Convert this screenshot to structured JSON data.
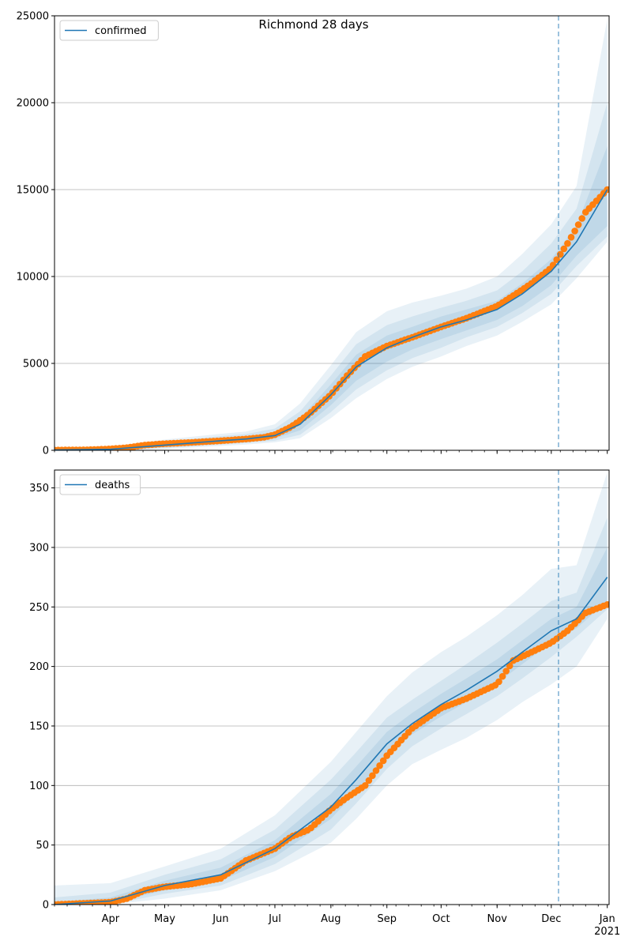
{
  "figure": {
    "title": "Richmond 28 days"
  },
  "chart_data": [
    {
      "type": "line",
      "panel": "top",
      "title": "Richmond 28 days",
      "xlabel": "",
      "ylabel": "",
      "x_axis_kind": "date",
      "xlim": [
        "2020-03-01",
        "2021-01-02"
      ],
      "ylim": [
        0,
        25000
      ],
      "yticks": [
        0,
        5000,
        10000,
        15000,
        20000,
        25000
      ],
      "ytick_labels": [
        "0",
        "5000",
        "10000",
        "15000",
        "20000",
        "25000"
      ],
      "grid": "horizontal",
      "legend": {
        "position": "top-left",
        "entries": [
          "confirmed"
        ]
      },
      "forecast_start": "2020-12-05",
      "colors": {
        "model": "#1f77b4",
        "observed": "#ff7f0e",
        "band": "#1f77b4",
        "vline": "#1f77b4"
      },
      "series": [
        {
          "name": "confirmed",
          "kind": "model",
          "x": [
            "2020-03-01",
            "2020-04-01",
            "2020-05-01",
            "2020-06-01",
            "2020-06-15",
            "2020-07-01",
            "2020-07-15",
            "2020-08-01",
            "2020-08-15",
            "2020-09-01",
            "2020-09-15",
            "2020-10-01",
            "2020-10-15",
            "2020-11-01",
            "2020-11-15",
            "2020-12-01",
            "2020-12-15",
            "2021-01-01"
          ],
          "values": [
            20,
            60,
            300,
            550,
            650,
            850,
            1500,
            3200,
            4800,
            5900,
            6500,
            7100,
            7500,
            8100,
            9000,
            10300,
            12000,
            15000
          ],
          "bands": [
            {
              "lo": [
                0,
                40,
                200,
                430,
                520,
                680,
                1150,
                2600,
                4000,
                5100,
                5800,
                6400,
                6900,
                7500,
                8300,
                9500,
                11200,
                12900
              ],
              "hi": [
                60,
                90,
                400,
                700,
                800,
                1050,
                1850,
                3800,
                5500,
                6600,
                7100,
                7700,
                8100,
                8600,
                9600,
                11000,
                12900,
                17500
              ]
            },
            {
              "lo": [
                0,
                20,
                130,
                330,
                420,
                560,
                900,
                2200,
                3500,
                4600,
                5300,
                5900,
                6500,
                7100,
                7900,
                9000,
                10600,
                12300
              ],
              "hi": [
                120,
                140,
                500,
                820,
                930,
                1250,
                2250,
                4300,
                6100,
                7200,
                7700,
                8200,
                8600,
                9200,
                10300,
                11900,
                13900,
                20000
              ]
            },
            {
              "lo": [
                0,
                0,
                80,
                250,
                330,
                460,
                700,
                1850,
                3000,
                4100,
                4800,
                5400,
                6000,
                6600,
                7400,
                8400,
                9900,
                12000
              ],
              "hi": [
                200,
                220,
                620,
                950,
                1080,
                1500,
                2700,
                4900,
                6800,
                8000,
                8500,
                8900,
                9300,
                10000,
                11300,
                13000,
                15200,
                24800
              ]
            }
          ]
        },
        {
          "name": "observed",
          "kind": "observed",
          "x": [
            "2020-03-01",
            "2020-03-20",
            "2020-04-01",
            "2020-04-10",
            "2020-04-20",
            "2020-05-01",
            "2020-05-15",
            "2020-06-01",
            "2020-06-15",
            "2020-06-25",
            "2020-07-01",
            "2020-07-10",
            "2020-07-20",
            "2020-08-01",
            "2020-08-10",
            "2020-08-20",
            "2020-09-01",
            "2020-09-15",
            "2020-10-01",
            "2020-10-15",
            "2020-11-01",
            "2020-11-10",
            "2020-11-20",
            "2020-12-01",
            "2020-12-10",
            "2020-12-20",
            "2021-01-01"
          ],
          "values": [
            10,
            30,
            80,
            150,
            300,
            380,
            450,
            550,
            650,
            750,
            900,
            1350,
            2100,
            3200,
            4300,
            5400,
            6000,
            6500,
            7100,
            7600,
            8300,
            8900,
            9600,
            10500,
            11900,
            13700,
            15000
          ]
        }
      ]
    },
    {
      "type": "line",
      "panel": "bottom",
      "title": "",
      "xlabel": "",
      "ylabel": "",
      "x_axis_kind": "date",
      "xlim": [
        "2020-03-01",
        "2021-01-02"
      ],
      "ylim": [
        0,
        365
      ],
      "yticks": [
        0,
        50,
        100,
        150,
        200,
        250,
        300,
        350
      ],
      "ytick_labels": [
        "0",
        "50",
        "100",
        "150",
        "200",
        "250",
        "300",
        "350"
      ],
      "xtick_labels": [
        {
          "date": "2020-04-01",
          "label": "Apr"
        },
        {
          "date": "2020-05-01",
          "label": "May"
        },
        {
          "date": "2020-06-01",
          "label": "Jun"
        },
        {
          "date": "2020-07-01",
          "label": "Jul"
        },
        {
          "date": "2020-08-01",
          "label": "Aug"
        },
        {
          "date": "2020-09-01",
          "label": "Sep"
        },
        {
          "date": "2020-10-01",
          "label": "Oct"
        },
        {
          "date": "2020-11-01",
          "label": "Nov"
        },
        {
          "date": "2020-12-01",
          "label": "Dec"
        },
        {
          "date": "2021-01-01",
          "label": "Jan",
          "sublabel": "2021"
        }
      ],
      "grid": "horizontal",
      "legend": {
        "position": "top-left",
        "entries": [
          "deaths"
        ]
      },
      "forecast_start": "2020-12-05",
      "colors": {
        "model": "#1f77b4",
        "observed": "#ff7f0e",
        "band": "#1f77b4",
        "vline": "#1f77b4"
      },
      "series": [
        {
          "name": "deaths",
          "kind": "model",
          "x": [
            "2020-03-01",
            "2020-04-01",
            "2020-05-01",
            "2020-06-01",
            "2020-07-01",
            "2020-08-01",
            "2020-08-15",
            "2020-09-01",
            "2020-09-15",
            "2020-10-01",
            "2020-10-15",
            "2020-11-01",
            "2020-11-15",
            "2020-12-01",
            "2020-12-15",
            "2021-01-01"
          ],
          "values": [
            0,
            3,
            16,
            25,
            47,
            82,
            105,
            135,
            152,
            168,
            180,
            196,
            212,
            230,
            240,
            275
          ],
          "bands": [
            {
              "lo": [
                0,
                1,
                12,
                20,
                40,
                72,
                95,
                125,
                143,
                158,
                170,
                186,
                202,
                220,
                232,
                255
              ],
              "hi": [
                2,
                6,
                20,
                31,
                54,
                93,
                116,
                145,
                161,
                177,
                190,
                206,
                222,
                240,
                250,
                300
              ]
            },
            {
              "lo": [
                0,
                0,
                9,
                16,
                34,
                63,
                85,
                114,
                133,
                148,
                160,
                175,
                190,
                208,
                225,
                248
              ],
              "hi": [
                6,
                10,
                25,
                38,
                63,
                105,
                128,
                157,
                172,
                188,
                202,
                220,
                236,
                255,
                262,
                325
              ]
            },
            {
              "lo": [
                0,
                0,
                5,
                12,
                28,
                52,
                72,
                100,
                118,
                130,
                140,
                155,
                170,
                185,
                200,
                240
              ],
              "hi": [
                16,
                18,
                32,
                47,
                75,
                120,
                145,
                175,
                195,
                212,
                225,
                243,
                260,
                282,
                285,
                363
              ]
            }
          ]
        },
        {
          "name": "observed",
          "kind": "observed",
          "x": [
            "2020-03-01",
            "2020-04-01",
            "2020-04-10",
            "2020-04-20",
            "2020-05-01",
            "2020-05-15",
            "2020-06-01",
            "2020-06-15",
            "2020-07-01",
            "2020-07-10",
            "2020-07-20",
            "2020-08-01",
            "2020-08-10",
            "2020-08-20",
            "2020-09-01",
            "2020-09-15",
            "2020-10-01",
            "2020-10-15",
            "2020-11-01",
            "2020-11-10",
            "2020-11-20",
            "2020-12-01",
            "2020-12-10",
            "2020-12-20",
            "2021-01-01"
          ],
          "values": [
            0,
            2,
            5,
            12,
            15,
            17,
            22,
            37,
            47,
            57,
            63,
            80,
            90,
            100,
            125,
            148,
            165,
            173,
            185,
            205,
            212,
            220,
            230,
            245,
            252
          ]
        }
      ]
    }
  ]
}
